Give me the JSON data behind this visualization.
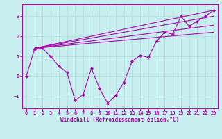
{
  "xlabel": "Windchill (Refroidissement éolien,°C)",
  "bg_color": "#c8eef0",
  "grid_color": "#b0e0e0",
  "line_color": "#aa00aa",
  "xlim": [
    -0.5,
    23.5
  ],
  "ylim": [
    -1.6,
    3.6
  ],
  "xticks": [
    0,
    1,
    2,
    3,
    4,
    5,
    6,
    7,
    8,
    9,
    10,
    11,
    12,
    13,
    14,
    15,
    16,
    17,
    18,
    19,
    20,
    21,
    22,
    23
  ],
  "yticks": [
    -1,
    0,
    1,
    2,
    3
  ],
  "data_x": [
    0,
    1,
    2,
    3,
    4,
    5,
    6,
    7,
    8,
    9,
    10,
    11,
    12,
    13,
    14,
    15,
    16,
    17,
    18,
    19,
    20,
    21,
    22,
    23
  ],
  "data_y": [
    0.0,
    1.35,
    1.4,
    1.0,
    0.5,
    0.2,
    -1.2,
    -0.9,
    0.4,
    -0.6,
    -1.35,
    -0.95,
    -0.3,
    0.75,
    1.05,
    0.95,
    1.75,
    2.2,
    2.1,
    3.0,
    2.5,
    2.75,
    3.0,
    3.3
  ],
  "ref_lines": [
    {
      "x": [
        1,
        23
      ],
      "y": [
        1.4,
        2.2
      ]
    },
    {
      "x": [
        1,
        23
      ],
      "y": [
        1.4,
        2.55
      ]
    },
    {
      "x": [
        1,
        23
      ],
      "y": [
        1.4,
        3.0
      ]
    },
    {
      "x": [
        1,
        23
      ],
      "y": [
        1.4,
        3.3
      ]
    }
  ]
}
